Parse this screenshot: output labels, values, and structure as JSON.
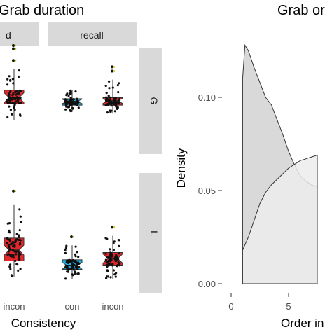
{
  "chart_data": [
    {
      "type": "box",
      "title": "Grab duration",
      "xlabel": "Consistency",
      "ylabel": "",
      "facet_columns": [
        "d",
        "recall"
      ],
      "facet_rows": [
        "G",
        "L"
      ],
      "x_tick_labels": {
        "d": [
          "incon"
        ],
        "recall": [
          "con",
          "incon"
        ]
      },
      "boxes": [
        {
          "row": "G",
          "column": "d",
          "category": "incon",
          "color": "#e3272b",
          "whisker_low": 0.32,
          "q1": 0.47,
          "median": 0.53,
          "q3": 0.6,
          "whisker_high": 0.8,
          "outliers": [
            0.88,
            0.99,
            1.02
          ]
        },
        {
          "row": "G",
          "column": "recall",
          "category": "con",
          "color": "#1fb3e8",
          "whisker_low": 0.4,
          "q1": 0.46,
          "median": 0.495,
          "q3": 0.52,
          "whisker_high": 0.6,
          "outliers": []
        },
        {
          "row": "G",
          "column": "recall",
          "category": "incon",
          "color": "#e3272b",
          "whisker_low": 0.38,
          "q1": 0.46,
          "median": 0.5,
          "q3": 0.53,
          "whisker_high": 0.7,
          "outliers": [
            0.78,
            0.82
          ]
        },
        {
          "row": "L",
          "column": "d",
          "category": "incon",
          "color": "#e3272b",
          "whisker_low": 0.14,
          "q1": 0.27,
          "median": 0.36,
          "q3": 0.46,
          "whisker_high": 0.74,
          "outliers": [
            0.85
          ]
        },
        {
          "row": "L",
          "column": "recall",
          "category": "con",
          "color": "#1fb3e8",
          "whisker_low": 0.12,
          "q1": 0.2,
          "median": 0.23,
          "q3": 0.28,
          "whisker_high": 0.4,
          "outliers": [
            0.47
          ]
        },
        {
          "row": "L",
          "column": "recall",
          "category": "incon",
          "color": "#e3272b",
          "whisker_low": 0.12,
          "q1": 0.23,
          "median": 0.29,
          "q3": 0.34,
          "whisker_high": 0.48,
          "outliers": [
            0.55
          ]
        }
      ]
    },
    {
      "type": "area",
      "title": "Grab or",
      "xlabel": "Order in",
      "ylabel": "Density",
      "x_ticks": [
        "0",
        "5"
      ],
      "y_ticks": [
        "0.00",
        "0.05",
        "0.10"
      ],
      "xlim": [
        0,
        7.5
      ],
      "ylim": [
        0,
        0.13
      ],
      "series": [
        {
          "fill": "#d9d9d9",
          "x": [
            1.0,
            1.2,
            1.5,
            2.0,
            2.5,
            3.0,
            3.5,
            4.0,
            4.5,
            5.0,
            5.5,
            6.0,
            6.5,
            7.0,
            7.5
          ],
          "y": [
            0.11,
            0.128,
            0.125,
            0.116,
            0.108,
            0.1,
            0.096,
            0.088,
            0.08,
            0.071,
            0.064,
            0.058,
            0.055,
            0.053,
            0.052
          ]
        },
        {
          "fill": "#ececec",
          "x": [
            1.0,
            1.5,
            2.0,
            2.5,
            3.0,
            3.5,
            4.0,
            4.5,
            5.0,
            5.5,
            6.0,
            6.5,
            7.0,
            7.5
          ],
          "y": [
            0.018,
            0.025,
            0.034,
            0.043,
            0.049,
            0.053,
            0.056,
            0.059,
            0.062,
            0.064,
            0.066,
            0.067,
            0.068,
            0.069
          ]
        }
      ]
    }
  ]
}
